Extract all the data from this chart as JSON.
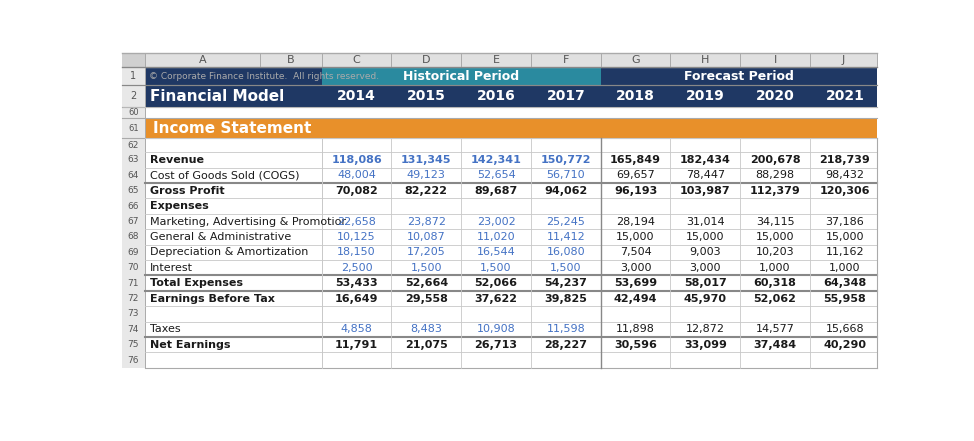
{
  "header_row1_text": "© Corporate Finance Institute.  All rights reserved.",
  "historical_label": "Historical Period",
  "forecast_label": "Forecast Period",
  "financial_model_label": "Financial Model",
  "years": [
    "2014",
    "2015",
    "2016",
    "2017",
    "2018",
    "2019",
    "2020",
    "2021"
  ],
  "section_label": "Income Statement",
  "data": {
    "63": [
      "118,086",
      "131,345",
      "142,341",
      "150,772",
      "165,849",
      "182,434",
      "200,678",
      "218,739"
    ],
    "64": [
      "48,004",
      "49,123",
      "52,654",
      "56,710",
      "69,657",
      "78,447",
      "88,298",
      "98,432"
    ],
    "65": [
      "70,082",
      "82,222",
      "89,687",
      "94,062",
      "96,193",
      "103,987",
      "112,379",
      "120,306"
    ],
    "66": [],
    "67": [
      "22,658",
      "23,872",
      "23,002",
      "25,245",
      "28,194",
      "31,014",
      "34,115",
      "37,186"
    ],
    "68": [
      "10,125",
      "10,087",
      "11,020",
      "11,412",
      "15,000",
      "15,000",
      "15,000",
      "15,000"
    ],
    "69": [
      "18,150",
      "17,205",
      "16,544",
      "16,080",
      "7,504",
      "9,003",
      "10,203",
      "11,162"
    ],
    "70": [
      "2,500",
      "1,500",
      "1,500",
      "1,500",
      "3,000",
      "3,000",
      "1,000",
      "1,000"
    ],
    "71": [
      "53,433",
      "52,664",
      "52,066",
      "54,237",
      "53,699",
      "58,017",
      "60,318",
      "64,348"
    ],
    "72": [
      "16,649",
      "29,558",
      "37,622",
      "39,825",
      "42,494",
      "45,970",
      "52,062",
      "55,958"
    ],
    "73": [],
    "74": [
      "4,858",
      "8,483",
      "10,908",
      "11,598",
      "11,898",
      "12,872",
      "14,577",
      "15,668"
    ],
    "75": [
      "11,791",
      "21,075",
      "26,713",
      "28,227",
      "30,596",
      "33,099",
      "37,484",
      "40,290"
    ],
    "76": []
  },
  "row_info": {
    "62": {
      "label": "",
      "bold": false
    },
    "63": {
      "label": "Revenue",
      "bold": true
    },
    "64": {
      "label": "Cost of Goods Sold (COGS)",
      "bold": false
    },
    "65": {
      "label": "Gross Profit",
      "bold": true
    },
    "66": {
      "label": "Expenses",
      "bold": true
    },
    "67": {
      "label": "Marketing, Advertising & Promotior",
      "bold": false
    },
    "68": {
      "label": "General & Administrative",
      "bold": false
    },
    "69": {
      "label": "Depreciation & Amortization",
      "bold": false
    },
    "70": {
      "label": "Interest",
      "bold": false
    },
    "71": {
      "label": "Total Expenses",
      "bold": true
    },
    "72": {
      "label": "Earnings Before Tax",
      "bold": true
    },
    "73": {
      "label": "",
      "bold": false
    },
    "74": {
      "label": "Taxes",
      "bold": false
    },
    "75": {
      "label": "Net Earnings",
      "bold": true
    },
    "76": {
      "label": "",
      "bold": false
    }
  },
  "blue_hist_rows": [
    "63",
    "64",
    "67",
    "68",
    "69",
    "70",
    "74"
  ],
  "thick_top_rows": [
    "65",
    "71",
    "72",
    "75"
  ],
  "dark_navy": "#1F3864",
  "teal": "#2A8A9F",
  "orange": "#E8902A",
  "blue_text": "#4472C4",
  "black_text": "#1A1A1A",
  "white_text": "#FFFFFF",
  "gray_bg": "#E0E0E0",
  "row_num_bg": "#E8E8E8",
  "grid_color": "#C8C8C8",
  "thick_line_color": "#888888"
}
